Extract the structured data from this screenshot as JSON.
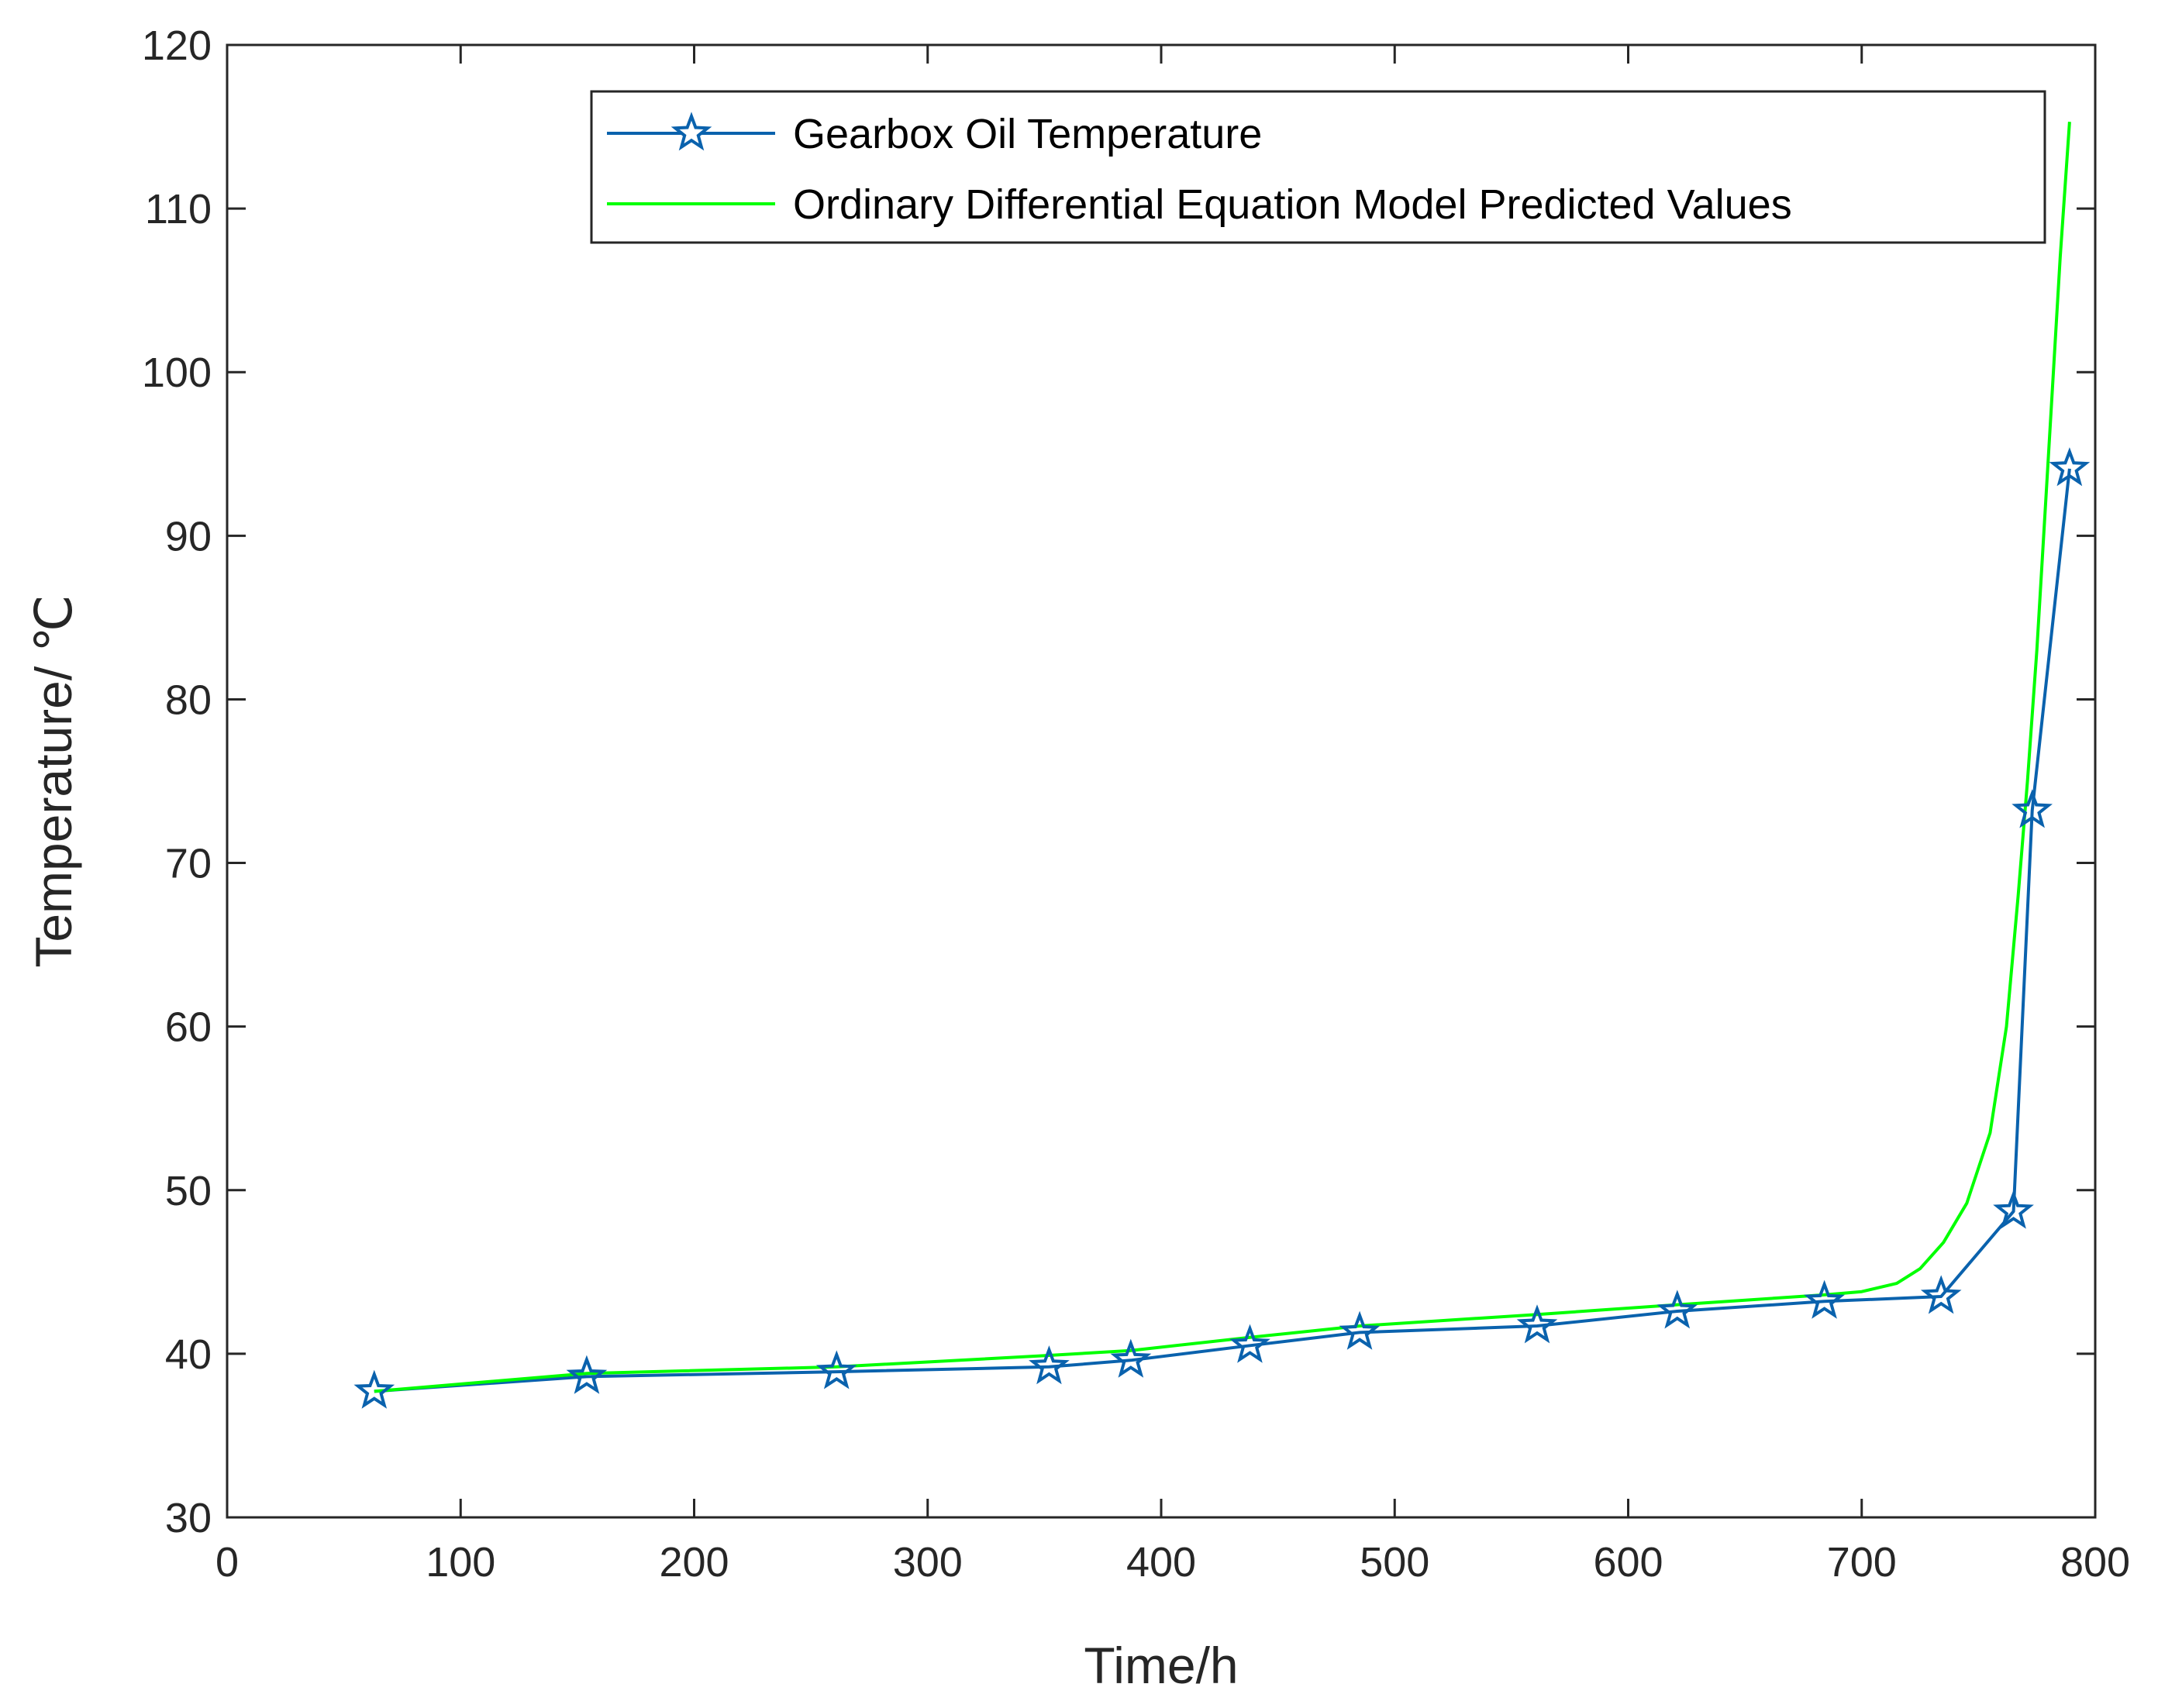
{
  "chart_data": {
    "type": "line",
    "xlabel": "Time/h",
    "ylabel": "Temperature/ ℃",
    "xlim": [
      0,
      800
    ],
    "ylim": [
      30,
      120
    ],
    "xticks": [
      0,
      100,
      200,
      300,
      400,
      500,
      600,
      700,
      800
    ],
    "yticks": [
      30,
      40,
      50,
      60,
      70,
      80,
      90,
      100,
      110,
      120
    ],
    "xtick_labels": [
      "0",
      "100",
      "200",
      "300",
      "400",
      "500",
      "600",
      "700",
      "800"
    ],
    "ytick_labels": [
      "30",
      "40",
      "50",
      "60",
      "70",
      "80",
      "90",
      "100",
      "110",
      "120"
    ],
    "grid": false,
    "legend_position": "top-right",
    "series": [
      {
        "name": "Gearbox Oil Temperature",
        "color": "#0a62ad",
        "marker": "star",
        "x": [
          63,
          154,
          261,
          352,
          387,
          438,
          485,
          561,
          621,
          684,
          734,
          765,
          773,
          789
        ],
        "y": [
          37.7,
          38.6,
          38.9,
          39.2,
          39.6,
          40.5,
          41.3,
          41.7,
          42.6,
          43.2,
          43.5,
          48.7,
          73.2,
          94.1
        ]
      },
      {
        "name": "Ordinary Differential Equation Model Predicted Values",
        "color": "#00ff00",
        "marker": "none",
        "x": [
          63,
          154,
          261,
          352,
          387,
          438,
          485,
          561,
          621,
          684,
          700,
          715,
          725,
          735,
          745,
          755,
          762,
          767,
          771,
          775,
          780,
          785,
          789
        ],
        "y": [
          37.7,
          38.8,
          39.2,
          39.9,
          40.2,
          41.0,
          41.7,
          42.4,
          43.0,
          43.6,
          43.8,
          44.3,
          45.2,
          46.8,
          49.2,
          53.5,
          60.0,
          68.0,
          75.0,
          83.0,
          95.0,
          107.0,
          115.3
        ]
      }
    ]
  }
}
